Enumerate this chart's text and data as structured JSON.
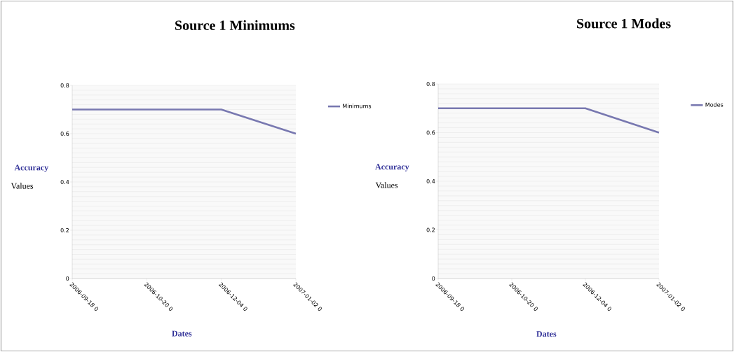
{
  "chart_data": [
    {
      "type": "line",
      "title": "Source 1 Minimums",
      "xlabel": "Dates",
      "ylabel": "Accuracy",
      "annotations": [
        "Values"
      ],
      "categories": [
        "2006-09-18 0",
        "2006-10-20 0",
        "2006-12-04 0",
        "2007-01-02 0"
      ],
      "series": [
        {
          "name": "Minimums",
          "color": "#7878b0",
          "values": [
            0.7,
            0.7,
            0.7,
            0.6
          ]
        }
      ],
      "ylim": [
        0,
        0.8
      ],
      "yticks": [
        0,
        0.2,
        0.4,
        0.6,
        0.8
      ],
      "grid": "y",
      "legend": "top right"
    },
    {
      "type": "line",
      "title": "Source 1 Modes",
      "xlabel": "Dates",
      "ylabel": "Accuracy",
      "annotations": [
        "Values"
      ],
      "categories": [
        "2006-09-18 0",
        "2006-10-20 0",
        "2006-12-04 0",
        "2007-01-02 0"
      ],
      "series": [
        {
          "name": "Modes",
          "color": "#7878b0",
          "values": [
            0.7,
            0.7,
            0.7,
            0.6
          ]
        }
      ],
      "ylim": [
        0,
        0.8
      ],
      "yticks": [
        0,
        0.2,
        0.4,
        0.6,
        0.8
      ],
      "grid": "y",
      "legend": "top right"
    }
  ]
}
